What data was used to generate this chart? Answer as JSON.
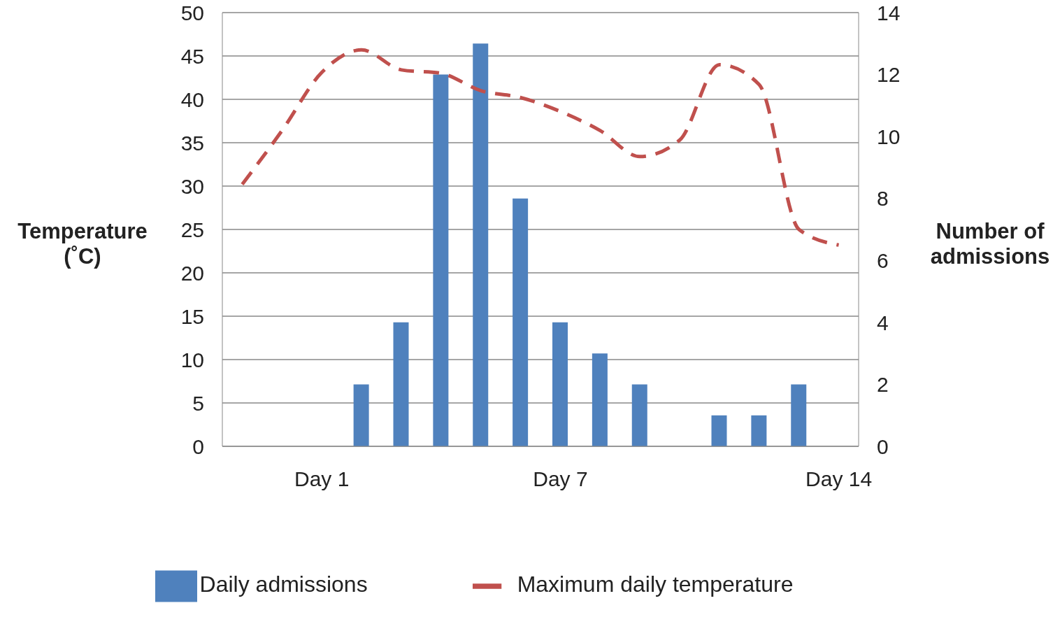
{
  "chart_data": {
    "type": "bar",
    "categories": [
      null,
      null,
      "Day 1",
      null,
      null,
      null,
      null,
      null,
      "Day 7",
      null,
      null,
      null,
      null,
      null,
      null,
      "Day 14"
    ],
    "series": [
      {
        "name": "Daily admissions",
        "axis": "y2",
        "color": "#4f81bd",
        "values": [
          null,
          null,
          null,
          2,
          4,
          12,
          13,
          8,
          4,
          3,
          2,
          null,
          1,
          1,
          2,
          null
        ]
      },
      {
        "name": "Maximum daily temperature",
        "type": "line",
        "axis": "y",
        "color": "#c0504d",
        "line_style": "dashed",
        "values": [
          30.2,
          36.4,
          43.1,
          45.7,
          43.4,
          43,
          41,
          40.2,
          38.6,
          36.4,
          33.4,
          35.3,
          44,
          41.7,
          25,
          23.2
        ]
      }
    ],
    "ylabel": "Temperature (˚C)",
    "y2label": "Number of admissions",
    "ylim": [
      0,
      50
    ],
    "yticks": [
      0,
      5,
      10,
      15,
      20,
      25,
      30,
      35,
      40,
      45,
      50
    ],
    "y2lim": [
      0,
      14
    ],
    "y2ticks": [
      0,
      2,
      4,
      6,
      8,
      10,
      12,
      14
    ],
    "grid": "y",
    "legend": "bottom",
    "marker": "none"
  }
}
